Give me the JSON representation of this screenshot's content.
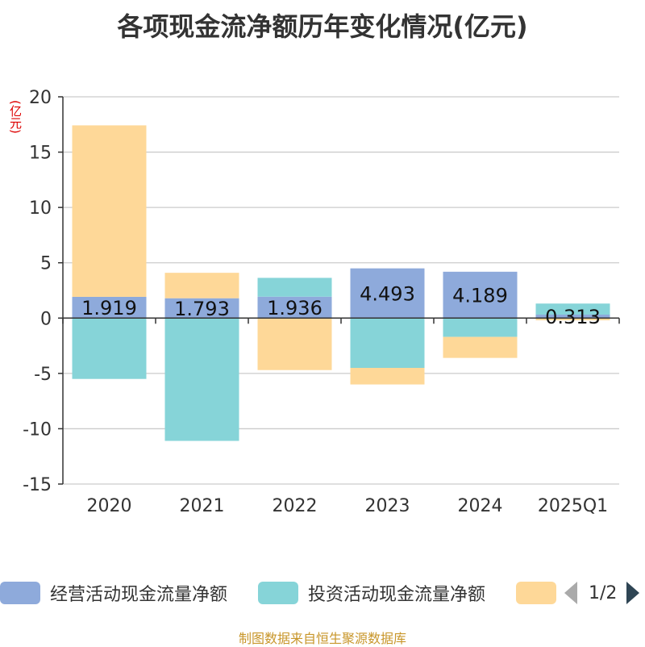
{
  "title": "各项现金流净额历年变化情况(亿元)",
  "source": "制图数据来自恒生聚源数据库",
  "colors": {
    "operating": "#8eaadb",
    "investing": "#86d4d8",
    "financing": "#fed898",
    "grid": "#cccccc",
    "axis": "#333333"
  },
  "legend": {
    "items": [
      "经营活动现金流量净额",
      "投资活动现金流量净额",
      ""
    ],
    "page": "1/2"
  },
  "chart_data": {
    "type": "bar",
    "stacked": true,
    "unit": "(亿元)",
    "categories": [
      "2020",
      "2021",
      "2022",
      "2023",
      "2024",
      "2025Q1"
    ],
    "ylim": [
      -15,
      20
    ],
    "yticks": [
      "20",
      "15",
      "10",
      "5",
      "0",
      "-5",
      "-10",
      "-15"
    ],
    "grid": true,
    "legend_position": "bottom",
    "series": [
      {
        "name": "经营活动现金流量净额",
        "values": [
          1.919,
          1.793,
          1.936,
          4.493,
          4.189,
          0.313
        ],
        "labels": [
          "1.919",
          "1.793",
          "1.936",
          "4.493",
          "4.189",
          "0.313"
        ]
      },
      {
        "name": "投资活动现金流量净额",
        "values": [
          -5.5,
          -11.1,
          1.7,
          -4.5,
          -1.7,
          1.0
        ]
      },
      {
        "values": [
          15.5,
          2.3,
          -4.7,
          -1.5,
          -1.9,
          -0.2
        ]
      }
    ]
  }
}
